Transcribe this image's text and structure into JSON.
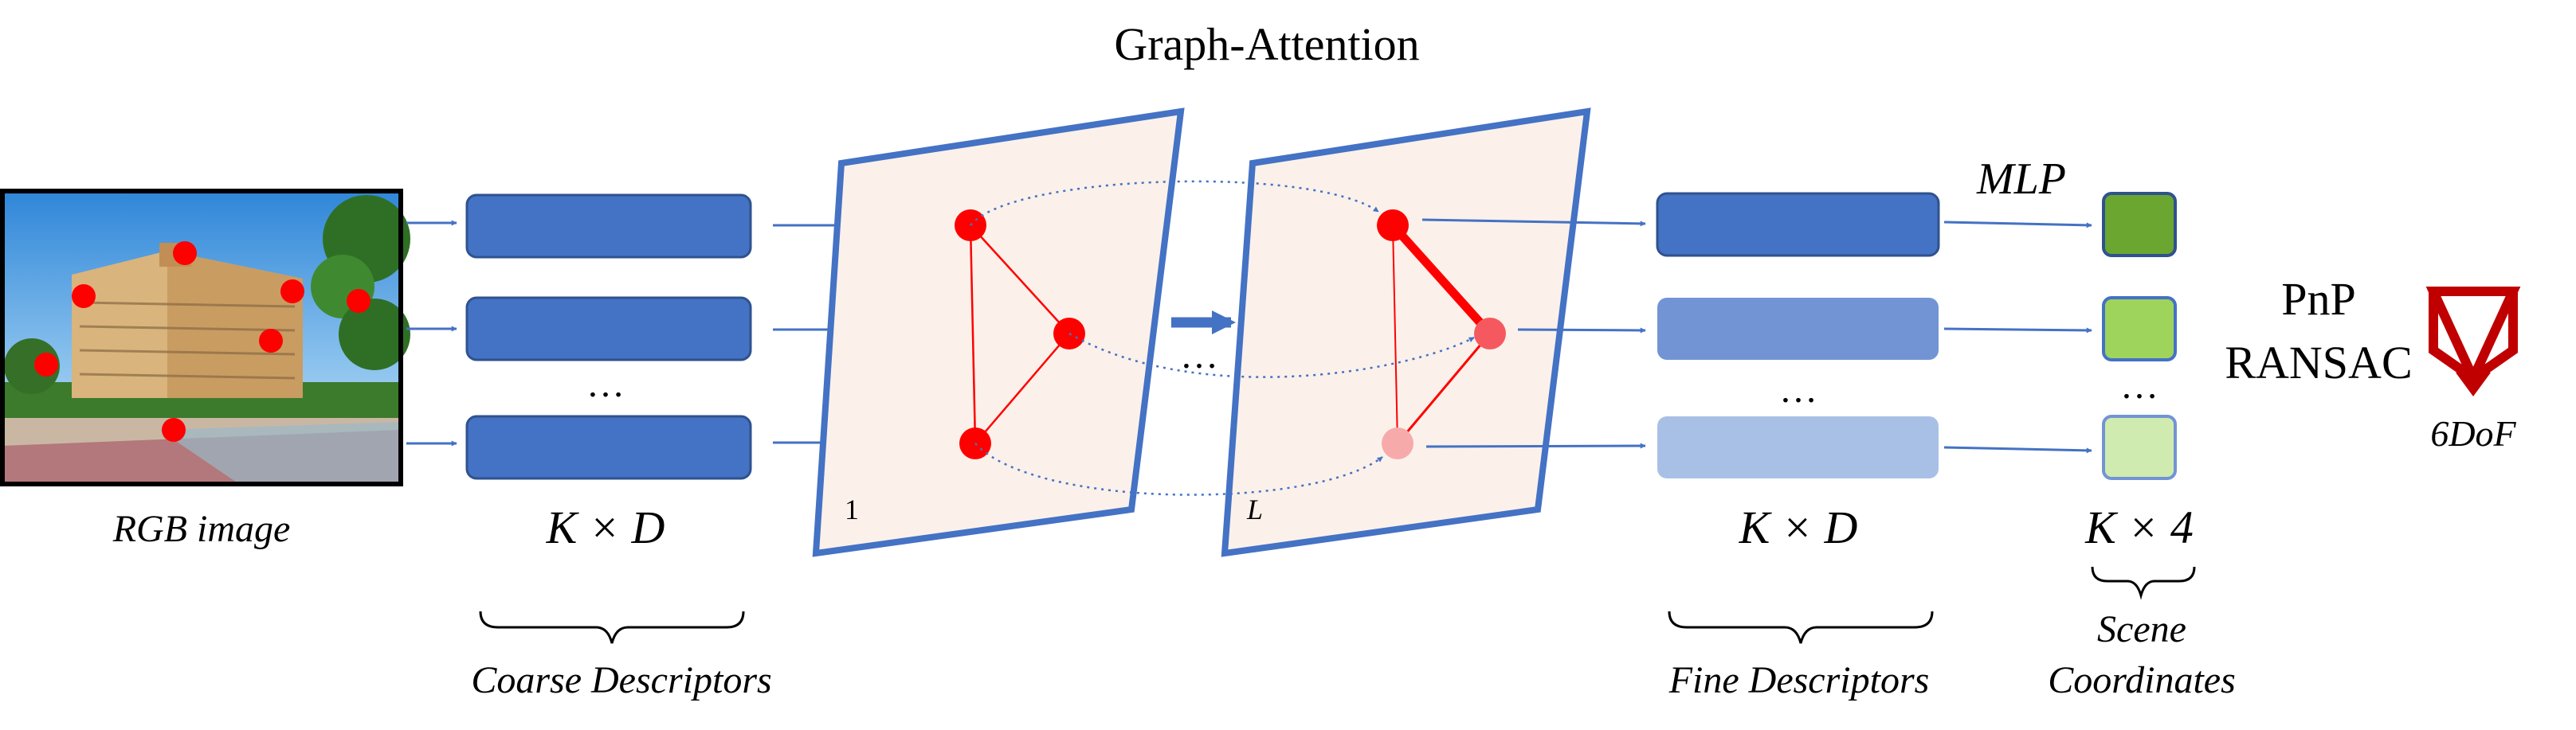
{
  "title": "Graph-Attention",
  "input": {
    "label": "RGB image",
    "points": [
      "p1",
      "p2",
      "p3",
      "p4",
      "p5",
      "p6",
      "p7"
    ]
  },
  "coarse": {
    "dims": "K × D",
    "brace_label": "Coarse Descriptors",
    "ellipsis": "…",
    "color": "#4472C4"
  },
  "graph_panels": [
    {
      "index_label": "1"
    },
    {
      "index_label": "L"
    }
  ],
  "between_panels_ellipsis": "…",
  "fine": {
    "dims": "K × D",
    "brace_label": "Fine Descriptors",
    "ellipsis": "…",
    "colors": [
      "#4472C4",
      "#7294D4",
      "#A9C0E6"
    ]
  },
  "mlp_label": "MLP",
  "scene": {
    "dims": "K × 4",
    "brace_label_line1": "Scene",
    "brace_label_line2": "Coordinates",
    "ellipsis": "…",
    "colors": [
      "#6AA630",
      "#9ED35C",
      "#D0EBB0"
    ]
  },
  "solver": {
    "line1": "PnP",
    "line2": "RANSAC",
    "output_label": "6DoF",
    "icon_color": "#C00000"
  }
}
